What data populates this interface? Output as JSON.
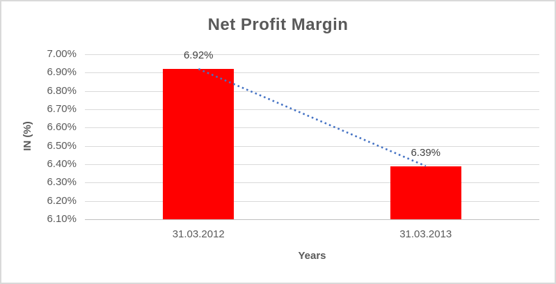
{
  "chart_data": {
    "type": "bar",
    "title": "Net Profit Margin",
    "categories": [
      "31.03.2012",
      "31.03.2013"
    ],
    "values": [
      6.92,
      6.39
    ],
    "data_labels": [
      "6.92%",
      "6.39%"
    ],
    "xlabel": "Years",
    "ylabel": "IN (%)",
    "ylim": [
      6.1,
      7.0
    ],
    "ytick_step": 0.1,
    "ytick_labels": [
      "7.00%",
      "6.90%",
      "6.80%",
      "6.70%",
      "6.60%",
      "6.50%",
      "6.40%",
      "6.30%",
      "6.20%",
      "6.10%"
    ],
    "grid": true,
    "legend": "none",
    "bar_color": "#FF0000",
    "trendline": {
      "type": "linear",
      "style": "dotted",
      "color": "#4472C4",
      "from_value": 6.92,
      "to_value": 6.39
    }
  },
  "colors": {
    "bar": "#FF0000",
    "trendline": "#4472C4",
    "text": "#595959",
    "data_label_text": "#404040",
    "gridline": "#D9D9D9",
    "border": "#D9D9D9"
  }
}
